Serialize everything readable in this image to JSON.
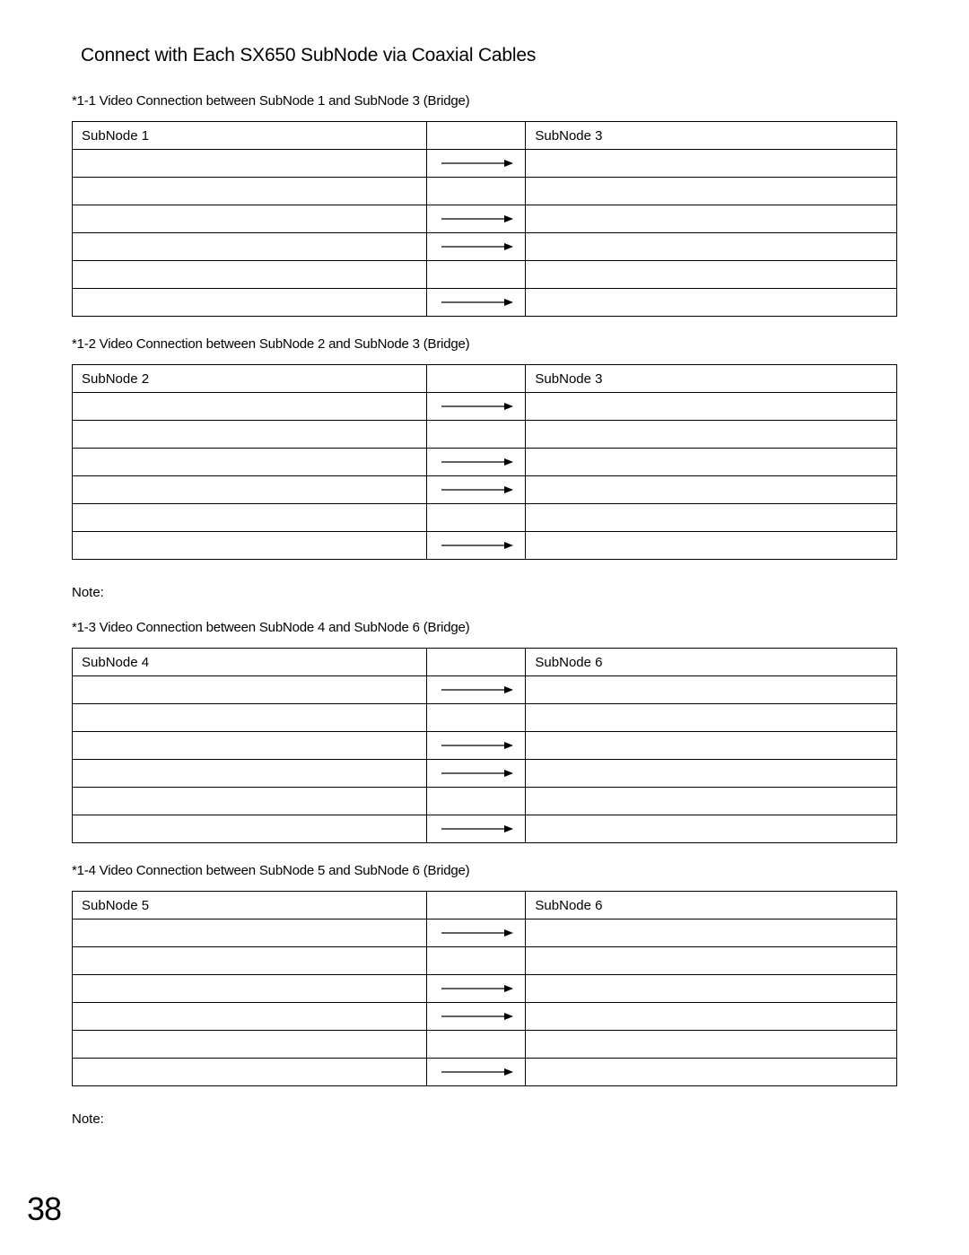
{
  "title": "Connect with Each SX650 SubNode via Coaxial Cables",
  "page_number": "38",
  "note_label": "Note:",
  "tables": [
    {
      "caption": "*1-1 Video Connection between SubNode 1 and SubNode 3 (Bridge)",
      "left_header": "SubNode 1",
      "right_header": "SubNode 3",
      "arrow_rows": [
        true,
        false,
        true,
        true,
        false,
        true
      ],
      "show_note_after": false
    },
    {
      "caption": "*1-2 Video Connection between SubNode 2 and SubNode 3 (Bridge)",
      "left_header": "SubNode 2",
      "right_header": "SubNode 3",
      "arrow_rows": [
        true,
        false,
        true,
        true,
        false,
        true
      ],
      "show_note_after": true
    },
    {
      "caption": "*1-3 Video Connection between SubNode 4 and SubNode 6 (Bridge)",
      "left_header": "SubNode 4",
      "right_header": "SubNode 6",
      "arrow_rows": [
        true,
        false,
        true,
        true,
        false,
        true
      ],
      "show_note_after": false
    },
    {
      "caption": "*1-4 Video Connection between SubNode 5 and SubNode 6 (Bridge)",
      "left_header": "SubNode 5",
      "right_header": "SubNode 6",
      "arrow_rows": [
        true,
        false,
        true,
        true,
        false,
        true
      ],
      "show_note_after": true
    }
  ],
  "arrow": {
    "width": 90,
    "height": 14,
    "stroke": "#000000",
    "stroke_width": 1.2
  }
}
